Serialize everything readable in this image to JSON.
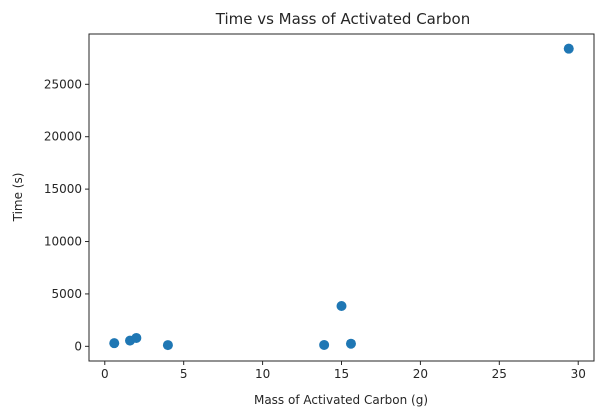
{
  "chart_data": {
    "type": "scatter",
    "title": "Time vs Mass of Activated Carbon",
    "xlabel": "Mass of Activated Carbon (g)",
    "ylabel": "Time (s)",
    "xlim": [
      -1,
      31
    ],
    "ylim": [
      -1400,
      29800
    ],
    "xticks": [
      0,
      5,
      10,
      15,
      20,
      25,
      30
    ],
    "yticks": [
      0,
      5000,
      10000,
      15000,
      20000,
      25000
    ],
    "grid": false,
    "marker_color": "#1f77b4",
    "points": [
      {
        "x": 0.6,
        "y": 300
      },
      {
        "x": 1.6,
        "y": 550
      },
      {
        "x": 2.0,
        "y": 800
      },
      {
        "x": 4.0,
        "y": 120
      },
      {
        "x": 13.9,
        "y": 130
      },
      {
        "x": 15.0,
        "y": 3850
      },
      {
        "x": 15.6,
        "y": 250
      },
      {
        "x": 29.4,
        "y": 28400
      }
    ]
  }
}
